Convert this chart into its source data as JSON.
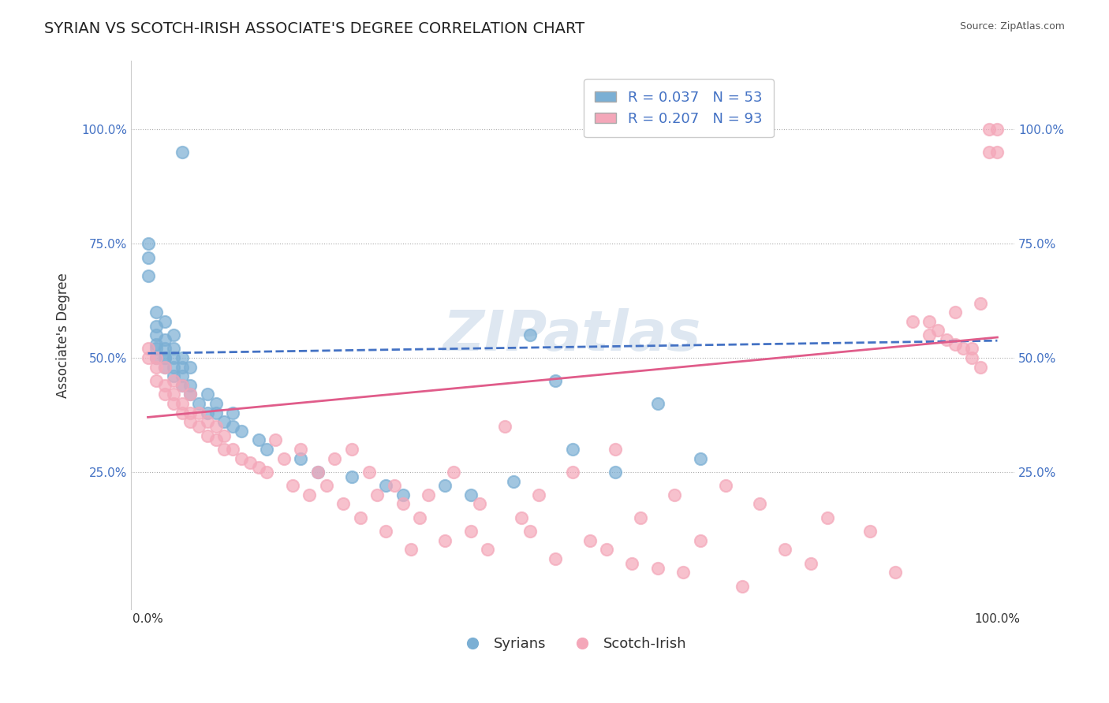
{
  "title": "SYRIAN VS SCOTCH-IRISH ASSOCIATE'S DEGREE CORRELATION CHART",
  "source_text": "Source: ZipAtlas.com",
  "xlabel": "",
  "ylabel": "Associate's Degree",
  "x_tick_labels": [
    "0.0%",
    "100.0%"
  ],
  "y_tick_labels": [
    "25.0%",
    "50.0%",
    "75.0%",
    "100.0%"
  ],
  "xlim": [
    0,
    1
  ],
  "ylim": [
    -0.05,
    1.15
  ],
  "legend_r_blue": "R = 0.037",
  "legend_n_blue": "N = 53",
  "legend_r_pink": "R = 0.207",
  "legend_n_pink": "N = 93",
  "blue_color": "#7BAFD4",
  "pink_color": "#F4A7B9",
  "blue_line_color": "#4472C4",
  "pink_line_color": "#E05C8A",
  "legend_text_color": "#4472C4",
  "watermark_color": "#C8D8E8",
  "background_color": "#FFFFFF",
  "title_fontsize": 14,
  "axis_label_fontsize": 12,
  "tick_fontsize": 11,
  "legend_fontsize": 13,
  "blue_scatter_x": [
    0.04,
    0.0,
    0.0,
    0.0,
    0.01,
    0.01,
    0.01,
    0.01,
    0.01,
    0.01,
    0.02,
    0.02,
    0.02,
    0.02,
    0.02,
    0.02,
    0.03,
    0.03,
    0.03,
    0.03,
    0.03,
    0.04,
    0.04,
    0.04,
    0.04,
    0.05,
    0.05,
    0.05,
    0.06,
    0.07,
    0.07,
    0.08,
    0.08,
    0.09,
    0.1,
    0.1,
    0.11,
    0.13,
    0.14,
    0.18,
    0.2,
    0.24,
    0.28,
    0.3,
    0.35,
    0.38,
    0.43,
    0.45,
    0.48,
    0.5,
    0.55,
    0.6,
    0.65
  ],
  "blue_scatter_y": [
    0.95,
    0.68,
    0.72,
    0.75,
    0.5,
    0.52,
    0.53,
    0.55,
    0.57,
    0.6,
    0.48,
    0.5,
    0.5,
    0.52,
    0.54,
    0.58,
    0.46,
    0.48,
    0.5,
    0.52,
    0.55,
    0.44,
    0.46,
    0.48,
    0.5,
    0.42,
    0.44,
    0.48,
    0.4,
    0.38,
    0.42,
    0.38,
    0.4,
    0.36,
    0.35,
    0.38,
    0.34,
    0.32,
    0.3,
    0.28,
    0.25,
    0.24,
    0.22,
    0.2,
    0.22,
    0.2,
    0.23,
    0.55,
    0.45,
    0.3,
    0.25,
    0.4,
    0.28
  ],
  "pink_scatter_x": [
    0.0,
    0.0,
    0.01,
    0.01,
    0.01,
    0.02,
    0.02,
    0.02,
    0.03,
    0.03,
    0.03,
    0.04,
    0.04,
    0.04,
    0.05,
    0.05,
    0.05,
    0.06,
    0.06,
    0.07,
    0.07,
    0.08,
    0.08,
    0.09,
    0.09,
    0.1,
    0.11,
    0.12,
    0.13,
    0.14,
    0.15,
    0.16,
    0.17,
    0.18,
    0.19,
    0.2,
    0.21,
    0.22,
    0.23,
    0.24,
    0.25,
    0.26,
    0.27,
    0.28,
    0.29,
    0.3,
    0.31,
    0.32,
    0.33,
    0.35,
    0.36,
    0.38,
    0.39,
    0.4,
    0.42,
    0.44,
    0.45,
    0.46,
    0.48,
    0.5,
    0.52,
    0.54,
    0.55,
    0.57,
    0.58,
    0.6,
    0.62,
    0.63,
    0.65,
    0.68,
    0.7,
    0.72,
    0.75,
    0.78,
    0.8,
    0.85,
    0.88,
    0.9,
    0.92,
    0.95,
    0.97,
    0.98,
    0.99,
    0.99,
    1.0,
    1.0,
    0.95,
    0.97,
    0.98,
    0.96,
    0.94,
    0.93,
    0.92
  ],
  "pink_scatter_y": [
    0.5,
    0.52,
    0.45,
    0.48,
    0.5,
    0.42,
    0.44,
    0.48,
    0.4,
    0.42,
    0.45,
    0.38,
    0.4,
    0.44,
    0.36,
    0.38,
    0.42,
    0.35,
    0.38,
    0.33,
    0.36,
    0.32,
    0.35,
    0.3,
    0.33,
    0.3,
    0.28,
    0.27,
    0.26,
    0.25,
    0.32,
    0.28,
    0.22,
    0.3,
    0.2,
    0.25,
    0.22,
    0.28,
    0.18,
    0.3,
    0.15,
    0.25,
    0.2,
    0.12,
    0.22,
    0.18,
    0.08,
    0.15,
    0.2,
    0.1,
    0.25,
    0.12,
    0.18,
    0.08,
    0.35,
    0.15,
    0.12,
    0.2,
    0.06,
    0.25,
    0.1,
    0.08,
    0.3,
    0.05,
    0.15,
    0.04,
    0.2,
    0.03,
    0.1,
    0.22,
    0.0,
    0.18,
    0.08,
    0.05,
    0.15,
    0.12,
    0.03,
    0.58,
    0.55,
    0.6,
    0.52,
    0.62,
    0.95,
    1.0,
    0.95,
    1.0,
    0.53,
    0.5,
    0.48,
    0.52,
    0.54,
    0.56,
    0.58
  ]
}
